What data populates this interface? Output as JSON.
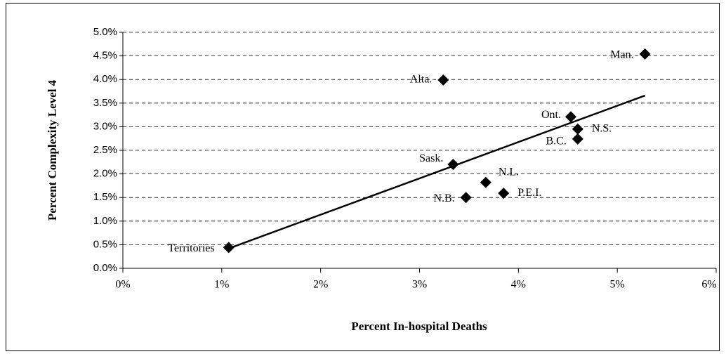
{
  "chart_data": {
    "type": "scatter",
    "x_label": "Percent In-hospital Deaths",
    "y_label": "Percent Complexity Level 4",
    "series": [
      {
        "color": "#000000",
        "labels": [
          "Territories",
          "Sask.",
          "Alta.",
          "N.B.",
          "N.L.",
          "P.E.I.",
          "Ont.",
          "N.S.",
          "B.C.",
          "Man."
        ],
        "x": [
          1.07,
          3.34,
          3.24,
          3.47,
          3.67,
          3.85,
          4.53,
          4.6,
          4.6,
          5.28
        ],
        "values": [
          0.44,
          2.2,
          3.99,
          1.5,
          1.82,
          1.59,
          3.21,
          2.95,
          2.74,
          4.54
        ]
      }
    ],
    "trendline": {
      "color": "#000000",
      "x": [
        1.07,
        5.28
      ],
      "values": [
        0.42,
        3.66
      ]
    },
    "xlim": [
      0,
      6
    ],
    "xticks": [
      {
        "value": 0,
        "label": "0%"
      },
      {
        "value": 1,
        "label": "1%"
      },
      {
        "value": 2,
        "label": "2%"
      },
      {
        "value": 3,
        "label": "3%"
      },
      {
        "value": 4,
        "label": "4%"
      },
      {
        "value": 5,
        "label": "5%"
      },
      {
        "value": 6,
        "label": "6%"
      }
    ],
    "ylim": [
      0,
      5
    ],
    "yticks": [
      {
        "value": 0,
        "label": "0.0%"
      },
      {
        "value": 0.5,
        "label": "0.5%"
      },
      {
        "value": 1,
        "label": "1.0%"
      },
      {
        "value": 1.5,
        "label": "1.5%"
      },
      {
        "value": 2,
        "label": "2.0%"
      },
      {
        "value": 2.5,
        "label": "2.5%"
      },
      {
        "value": 3,
        "label": "3.0%"
      },
      {
        "value": 3.5,
        "label": "3.5%"
      },
      {
        "value": 4,
        "label": "4.0%"
      },
      {
        "value": 4.5,
        "label": "4.5%"
      },
      {
        "value": 5,
        "label": "5.0%"
      }
    ],
    "grid": true
  }
}
